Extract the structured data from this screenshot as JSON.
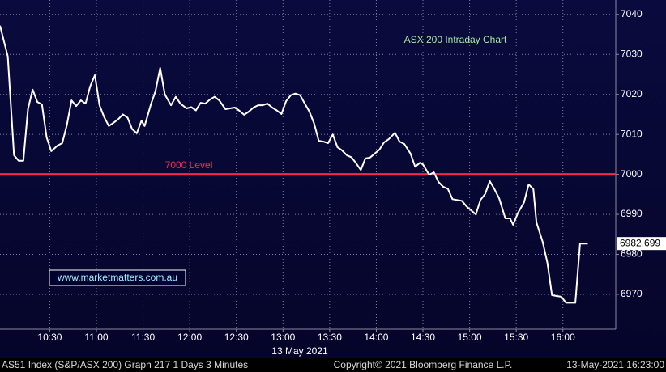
{
  "chart_data": {
    "type": "line",
    "title": "ASX 200 Intraday Chart",
    "date_label": "13 May 2021",
    "watermark": "www.marketmatters.com.au",
    "footer": {
      "left": "AS51 Index (S&P/ASX 200) Graph 217 1 Days 3 Minutes",
      "center": "Copyright© 2021 Bloomberg Finance L.P.",
      "right": "13-May-2021 16:23:00"
    },
    "reference_line": {
      "value": 7000,
      "label": "7000 Level",
      "color": "#ff2450"
    },
    "last_price": 6982.699,
    "grid": true,
    "xlim": [
      598,
      994
    ],
    "ylim": [
      6961.3,
      7043.6
    ],
    "xticks": [
      {
        "value": 630,
        "label": "10:30"
      },
      {
        "value": 660,
        "label": "11:00"
      },
      {
        "value": 690,
        "label": "11:30"
      },
      {
        "value": 720,
        "label": "12:00"
      },
      {
        "value": 750,
        "label": "12:30"
      },
      {
        "value": 780,
        "label": "13:00"
      },
      {
        "value": 810,
        "label": "13:30"
      },
      {
        "value": 840,
        "label": "14:00"
      },
      {
        "value": 870,
        "label": "14:30"
      },
      {
        "value": 900,
        "label": "15:00"
      },
      {
        "value": 930,
        "label": "15:30"
      },
      {
        "value": 960,
        "label": "16:00"
      }
    ],
    "yticks": [
      6970,
      6980,
      6990,
      7000,
      7010,
      7020,
      7030,
      7040
    ],
    "x": [
      598,
      603,
      607,
      610,
      613,
      616,
      619,
      622,
      625,
      628,
      631,
      635,
      638,
      641,
      644,
      647,
      650,
      653,
      656,
      659,
      662,
      665,
      668,
      671,
      674,
      677,
      680,
      683,
      686,
      689,
      691,
      695,
      698,
      701,
      704,
      708,
      711,
      714,
      718,
      721,
      724,
      727,
      730,
      733,
      736,
      739,
      743,
      746,
      749,
      752,
      755,
      758,
      761,
      764,
      767,
      770,
      773,
      776,
      779,
      782,
      785,
      788,
      791,
      794,
      797,
      800,
      803,
      806,
      809,
      812,
      815,
      818,
      821,
      824,
      827,
      830,
      833,
      836,
      839,
      842,
      845,
      848,
      852,
      855,
      858,
      862,
      865,
      868,
      870,
      874,
      877,
      880,
      883,
      886,
      889,
      892,
      895,
      898,
      901,
      904,
      907,
      910,
      913,
      916,
      919,
      923,
      926,
      928,
      931,
      935,
      938,
      941,
      943,
      947,
      950,
      953,
      956,
      959,
      962,
      965,
      968,
      971,
      976
    ],
    "series": [
      {
        "name": "AS51 Index",
        "color": "#ffffff",
        "values": [
          7037.2,
          7029.5,
          7004.8,
          7003.4,
          7003.4,
          7016.3,
          7021.2,
          7018.1,
          7017.5,
          7009.2,
          7005.8,
          7007.2,
          7007.8,
          7012.3,
          7018.5,
          7017.1,
          7018.5,
          7017.7,
          7022.0,
          7024.8,
          7017.3,
          7014.3,
          7012.1,
          7012.9,
          7013.8,
          7015.0,
          7014.2,
          7011.3,
          7010.3,
          7013.4,
          7012.1,
          7017.5,
          7020.8,
          7026.6,
          7020.0,
          7017.3,
          7019.4,
          7017.7,
          7016.5,
          7016.8,
          7016.0,
          7017.9,
          7017.7,
          7018.7,
          7019.4,
          7018.5,
          7016.3,
          7016.5,
          7016.7,
          7015.9,
          7014.9,
          7015.7,
          7016.7,
          7017.3,
          7017.3,
          7017.7,
          7016.7,
          7016.0,
          7015.1,
          7018.3,
          7019.8,
          7020.2,
          7019.8,
          7017.7,
          7015.7,
          7012.7,
          7008.4,
          7008.2,
          7007.8,
          7010.0,
          7006.8,
          7006.0,
          7004.8,
          7004.3,
          7002.8,
          7001.1,
          7004.0,
          7004.2,
          7005.2,
          7006.2,
          7008.0,
          7008.8,
          7010.4,
          7008.2,
          7007.6,
          7005.2,
          7001.9,
          7002.9,
          7002.5,
          6999.9,
          7000.5,
          6998.1,
          6996.9,
          6996.4,
          6993.8,
          6993.6,
          6993.4,
          6992.0,
          6991.0,
          6990.0,
          6993.6,
          6995.1,
          6998.3,
          6996.3,
          6994.0,
          6989.0,
          6989.0,
          6987.4,
          6990.3,
          6993.0,
          6997.5,
          6996.3,
          6988.0,
          6983.1,
          6977.9,
          6969.8,
          6969.6,
          6969.4,
          6967.9,
          6967.9,
          6967.9,
          6982.699,
          6982.699
        ]
      }
    ]
  }
}
